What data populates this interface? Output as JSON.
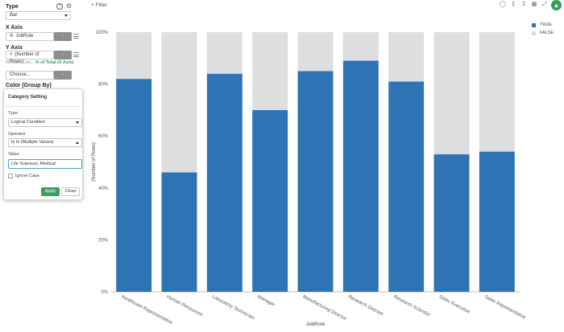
{
  "left_panel": {
    "type": {
      "label": "Type",
      "value": "Bar",
      "help_icon": "?",
      "gear_icon": "⚙"
    },
    "x_axis": {
      "label": "X Axis",
      "column_type_icon": "A",
      "column": "JobRole",
      "button": "-"
    },
    "y_axis": {
      "label": "Y Axis",
      "column_type_icon": "#",
      "column": "(Number of Rows)",
      "button": "-",
      "window_calc_label": "Window Calc.:",
      "window_calc_value": "% of Total (X Axis)"
    },
    "choose": {
      "value": "Choose...",
      "button": "-"
    },
    "color": {
      "label": "Color (Group By)"
    }
  },
  "popup": {
    "title": "Category Setting",
    "type_label": "Type",
    "type_value": "Logical Condition",
    "operator_label": "Operator",
    "operator_value": "Is In (Multiple Values)",
    "value_label": "Value",
    "value_input": "Life Sciences, Medical",
    "ignore_case_label": "Ignore Case",
    "apply": "Apply",
    "close": "Close"
  },
  "toolbar": {
    "filter_label": "+ Filter"
  },
  "colors": {
    "true": "#2e74b5",
    "false": "#dcdee0",
    "accent": "#2e9e5b"
  },
  "chart_data": {
    "type": "bar",
    "stacked": true,
    "xlabel": "JobRole",
    "ylabel": "(Number of Rows)",
    "ylim": [
      0,
      100
    ],
    "yticks": [
      "0%",
      "20%",
      "40%",
      "60%",
      "80%",
      "100%"
    ],
    "categories": [
      "Healthcare Representative",
      "Human Resources",
      "Laboratory Technician",
      "Manager",
      "Manufacturing Director",
      "Research Director",
      "Research Scientist",
      "Sales Executive",
      "Sales Representative"
    ],
    "series": [
      {
        "name": "TRUE",
        "color": "#2e74b5",
        "values": [
          82,
          46,
          84,
          70,
          85,
          89,
          81,
          53,
          54
        ]
      },
      {
        "name": "FALSE",
        "color": "#dcdee0",
        "values": [
          18,
          54,
          16,
          30,
          15,
          11,
          19,
          47,
          46
        ]
      }
    ],
    "legend": "top-right"
  }
}
